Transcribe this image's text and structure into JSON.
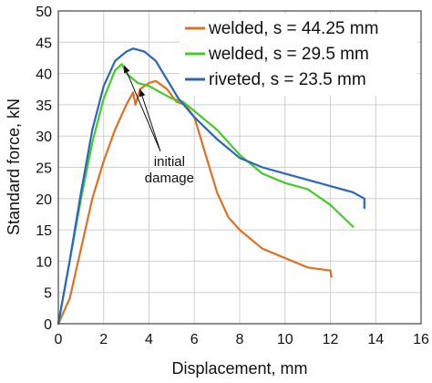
{
  "chart_data": {
    "type": "line",
    "xlabel": "Displacement, mm",
    "ylabel": "Standard force, kN",
    "xlim": [
      0,
      16
    ],
    "ylim": [
      0,
      50
    ],
    "xticks": [
      0,
      2,
      4,
      6,
      8,
      10,
      12,
      14,
      16
    ],
    "yticks": [
      0,
      5,
      10,
      15,
      20,
      25,
      30,
      35,
      40,
      45,
      50
    ],
    "grid": true,
    "legend_position": "top-right",
    "series": [
      {
        "name": "welded, s = 44.25 mm",
        "color": "#e07020",
        "points": [
          [
            0,
            0
          ],
          [
            0.5,
            4
          ],
          [
            1,
            12
          ],
          [
            1.5,
            20
          ],
          [
            2,
            26
          ],
          [
            2.5,
            31
          ],
          [
            3,
            35
          ],
          [
            3.3,
            37
          ],
          [
            3.4,
            35
          ],
          [
            3.6,
            37.5
          ],
          [
            4,
            38.5
          ],
          [
            4.3,
            38.8
          ],
          [
            4.8,
            37.5
          ],
          [
            5.2,
            35.5
          ],
          [
            5.6,
            35
          ],
          [
            6,
            33
          ],
          [
            6.5,
            27
          ],
          [
            7,
            21
          ],
          [
            7.5,
            17
          ],
          [
            8,
            15
          ],
          [
            9,
            12
          ],
          [
            10,
            10.5
          ],
          [
            11,
            9
          ],
          [
            12,
            8.5
          ],
          [
            12.05,
            7.5
          ]
        ]
      },
      {
        "name": "welded, s = 29.5 mm",
        "color": "#44cc22",
        "points": [
          [
            0,
            0
          ],
          [
            0.5,
            10
          ],
          [
            1,
            20
          ],
          [
            1.5,
            29
          ],
          [
            2,
            36
          ],
          [
            2.5,
            40.5
          ],
          [
            2.8,
            41.5
          ],
          [
            3,
            40
          ],
          [
            3.5,
            38.5
          ],
          [
            4,
            38
          ],
          [
            4.5,
            37
          ],
          [
            5,
            36
          ],
          [
            5.5,
            35.5
          ],
          [
            6,
            34
          ],
          [
            7,
            31
          ],
          [
            8,
            27
          ],
          [
            9,
            24
          ],
          [
            10,
            22.5
          ],
          [
            11,
            21.5
          ],
          [
            12,
            19
          ],
          [
            13,
            15.5
          ]
        ]
      },
      {
        "name": "riveted, s = 23.5 mm",
        "color": "#2a66c0",
        "points": [
          [
            0,
            0
          ],
          [
            0.5,
            10
          ],
          [
            1,
            21
          ],
          [
            1.5,
            31
          ],
          [
            2,
            38
          ],
          [
            2.5,
            42
          ],
          [
            3,
            43.5
          ],
          [
            3.3,
            44
          ],
          [
            3.8,
            43.5
          ],
          [
            4.3,
            42
          ],
          [
            4.8,
            39
          ],
          [
            5.3,
            36
          ],
          [
            6,
            33
          ],
          [
            7,
            29.5
          ],
          [
            8,
            26.5
          ],
          [
            9,
            25
          ],
          [
            10,
            24
          ],
          [
            11,
            23
          ],
          [
            12,
            22
          ],
          [
            13,
            21
          ],
          [
            13.5,
            20
          ],
          [
            13.5,
            18.5
          ]
        ]
      }
    ],
    "annotation": {
      "text_lines": [
        "initial",
        "damage"
      ],
      "anchor": [
        4.9,
        27
      ],
      "targets": [
        [
          3.6,
          37.5
        ],
        [
          2.9,
          41.3
        ]
      ]
    }
  }
}
